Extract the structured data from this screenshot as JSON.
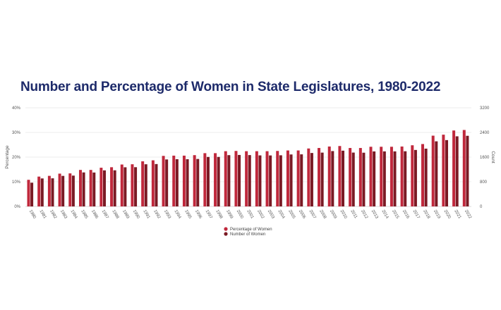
{
  "chart_data": {
    "type": "bar",
    "title": "Number and Percentage of Women in State Legislatures, 1980-2022",
    "categories": [
      "1980",
      "1981",
      "1982",
      "1983",
      "1984",
      "1985",
      "1986",
      "1987",
      "1988",
      "1989",
      "1990",
      "1991",
      "1992",
      "1993",
      "1994",
      "1995",
      "1996",
      "1997",
      "1998",
      "1999",
      "2000",
      "2001",
      "2002",
      "2003",
      "2004",
      "2005",
      "2006",
      "2007",
      "2008",
      "2009",
      "2010",
      "2011",
      "2012",
      "2013",
      "2014",
      "2015",
      "2016",
      "2017",
      "2018",
      "2019",
      "2020",
      "2021",
      "2022"
    ],
    "series": [
      {
        "name": "Percentage of Women",
        "axis": "left",
        "color": "#c0283c",
        "values": [
          10.8,
          12.1,
          12.4,
          13.3,
          13.4,
          14.8,
          14.8,
          15.7,
          15.9,
          17.0,
          17.1,
          18.3,
          18.7,
          20.5,
          20.6,
          20.6,
          20.8,
          21.6,
          21.6,
          22.4,
          22.5,
          22.4,
          22.4,
          22.4,
          22.5,
          22.7,
          22.7,
          23.5,
          23.7,
          24.3,
          24.5,
          23.7,
          23.7,
          24.2,
          24.2,
          24.2,
          24.3,
          24.8,
          25.3,
          28.7,
          29.1,
          30.8,
          31.0
        ]
      },
      {
        "name": "Number of Women",
        "axis": "right",
        "color": "#7a1a24",
        "values": [
          770,
          908,
          912,
          991,
          1000,
          1103,
          1100,
          1170,
          1172,
          1270,
          1273,
          1368,
          1375,
          1524,
          1532,
          1532,
          1540,
          1605,
          1606,
          1664,
          1670,
          1666,
          1656,
          1654,
          1659,
          1686,
          1690,
          1734,
          1746,
          1796,
          1809,
          1747,
          1743,
          1785,
          1786,
          1786,
          1790,
          1832,
          1875,
          2112,
          2152,
          2275,
          2292
        ]
      }
    ],
    "ylabel": "Percentage",
    "y2label": "Count",
    "yticks": [
      "0%",
      "10%",
      "20%",
      "30%",
      "40%"
    ],
    "y2ticks": [
      "0",
      "800",
      "1600",
      "2400",
      "3200"
    ],
    "ylim": [
      0,
      40
    ],
    "y2lim": [
      0,
      3200
    ],
    "grid": true,
    "legend": "bottom"
  }
}
